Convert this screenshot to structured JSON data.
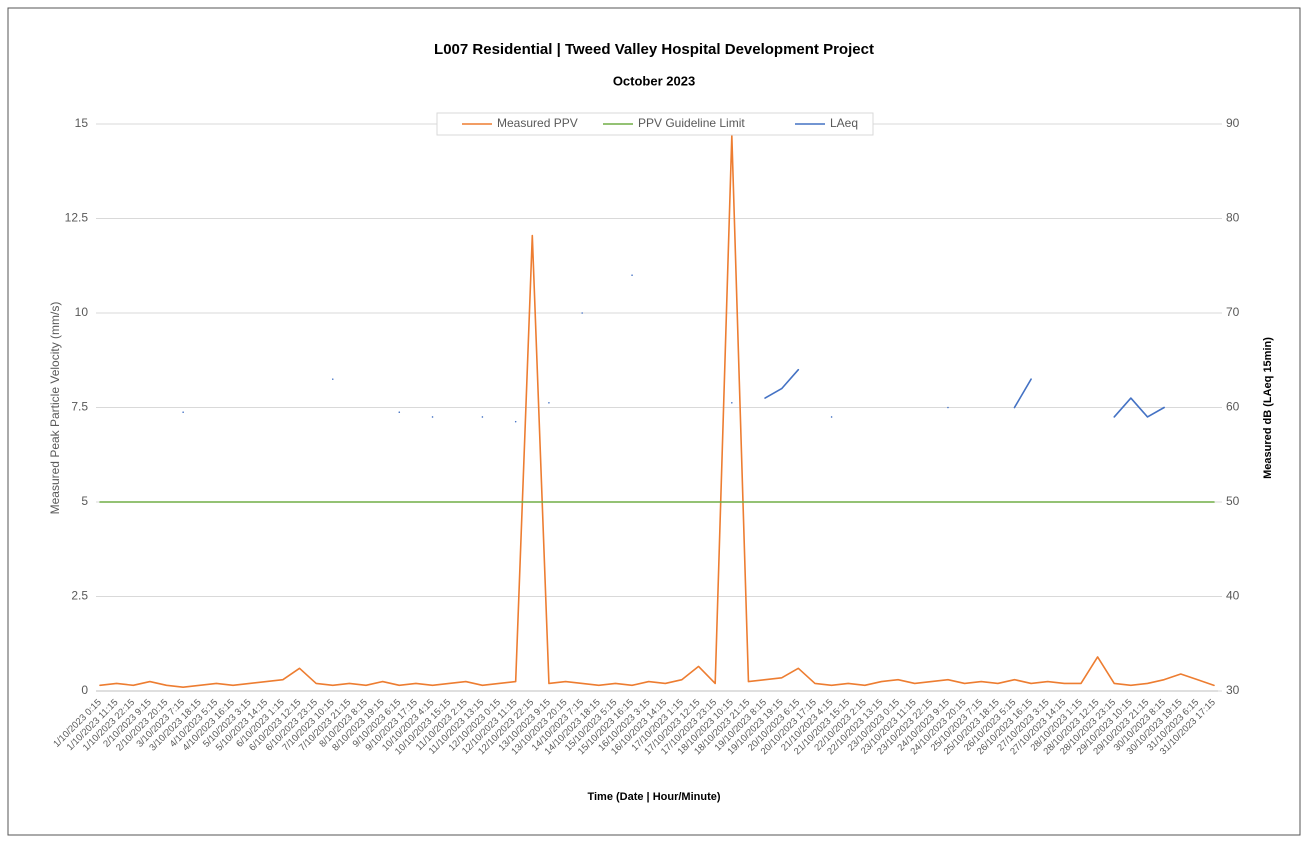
{
  "chart_data": {
    "type": "line",
    "title": "L007 Residential | Tweed Valley Hospital Development Project",
    "subtitle": "October 2023",
    "x_label": "Time  (Date | Hour/Minute)",
    "y_label": "Measured Peak Particle Velocity (mm/s)",
    "y2_label": "Measured dB (LAeq 15min)",
    "categories": [
      "1/10/2023 0:15",
      "1/10/2023 11:15",
      "1/10/2023 22:15",
      "2/10/2023 9:15",
      "2/10/2023 20:15",
      "3/10/2023 7:15",
      "3/10/2023 18:15",
      "4/10/2023 5:15",
      "4/10/2023 16:15",
      "5/10/2023 3:15",
      "5/10/2023 14:15",
      "6/10/2023 1:15",
      "6/10/2023 12:15",
      "6/10/2023 23:15",
      "7/10/2023 10:15",
      "7/10/2023 21:15",
      "8/10/2023 8:15",
      "8/10/2023 19:15",
      "9/10/2023 6:15",
      "9/10/2023 17:15",
      "10/10/2023 4:15",
      "10/10/2023 15:15",
      "11/10/2023 2:15",
      "11/10/2023 13:15",
      "12/10/2023 0:15",
      "12/10/2023 11:15",
      "12/10/2023 22:15",
      "13/10/2023 9:15",
      "13/10/2023 20:15",
      "14/10/2023 7:15",
      "14/10/2023 18:15",
      "15/10/2023 5:15",
      "15/10/2023 16:15",
      "16/10/2023 3:15",
      "16/10/2023 14:15",
      "17/10/2023 1:15",
      "17/10/2023 12:15",
      "17/10/2023 23:15",
      "18/10/2023 10:15",
      "18/10/2023 21:15",
      "19/10/2023 8:15",
      "19/10/2023 19:15",
      "20/10/2023 6:15",
      "20/10/2023 17:15",
      "21/10/2023 4:15",
      "21/10/2023 15:15",
      "22/10/2023 2:15",
      "22/10/2023 13:15",
      "23/10/2023 0:15",
      "23/10/2023 11:15",
      "23/10/2023 22:15",
      "24/10/2023 9:15",
      "24/10/2023 20:15",
      "25/10/2023 7:15",
      "25/10/2023 18:15",
      "26/10/2023 5:15",
      "26/10/2023 16:15",
      "27/10/2023 3:15",
      "27/10/2023 14:15",
      "28/10/2023 1:15",
      "28/10/2023 12:15",
      "28/10/2023 23:15",
      "29/10/2023 10:15",
      "29/10/2023 21:15",
      "30/10/2023 8:15",
      "30/10/2023 19:15",
      "31/10/2023 6:15",
      "31/10/2023 17:15"
    ],
    "series": [
      {
        "name": "Measured PPV",
        "color": "#ed7d31",
        "values": [
          0.15,
          0.2,
          0.15,
          0.25,
          0.15,
          0.1,
          0.15,
          0.2,
          0.15,
          0.2,
          0.25,
          0.3,
          0.6,
          0.2,
          0.15,
          0.2,
          0.15,
          0.25,
          0.15,
          0.2,
          0.15,
          0.2,
          0.25,
          0.15,
          0.2,
          0.25,
          12.05,
          0.2,
          0.25,
          0.2,
          0.15,
          0.2,
          0.15,
          0.25,
          0.2,
          0.3,
          0.65,
          0.2,
          14.7,
          0.25,
          0.3,
          0.35,
          0.6,
          0.2,
          0.15,
          0.2,
          0.15,
          0.25,
          0.3,
          0.2,
          0.25,
          0.3,
          0.2,
          0.25,
          0.2,
          0.3,
          0.2,
          0.25,
          0.2,
          0.2,
          0.9,
          0.2,
          0.15,
          0.2,
          0.3,
          0.45,
          0.3,
          0.15
        ]
      },
      {
        "name": "PPV Guideline Limit",
        "color": "#70ad47",
        "values": [
          5,
          5,
          5,
          5,
          5,
          5,
          5,
          5,
          5,
          5,
          5,
          5,
          5,
          5,
          5,
          5,
          5,
          5,
          5,
          5,
          5,
          5,
          5,
          5,
          5,
          5,
          5,
          5,
          5,
          5,
          5,
          5,
          5,
          5,
          5,
          5,
          5,
          5,
          5,
          5,
          5,
          5,
          5,
          5,
          5,
          5,
          5,
          5,
          5,
          5,
          5,
          5,
          5,
          5,
          5,
          5,
          5,
          5,
          5,
          5,
          5,
          5,
          5,
          5,
          5,
          5,
          5,
          5
        ]
      },
      {
        "name": "LAeq",
        "color": "#4472c4",
        "axis": "y2",
        "values": [
          null,
          null,
          null,
          null,
          null,
          59.5,
          null,
          null,
          null,
          null,
          null,
          null,
          null,
          null,
          63,
          null,
          null,
          null,
          59.5,
          null,
          59,
          null,
          null,
          59,
          null,
          58.5,
          null,
          60.5,
          null,
          70,
          null,
          null,
          74,
          null,
          null,
          null,
          null,
          null,
          60.5,
          null,
          61,
          62,
          64,
          null,
          59,
          null,
          null,
          null,
          null,
          null,
          null,
          60,
          null,
          null,
          null,
          60,
          63,
          null,
          null,
          null,
          null,
          59,
          61,
          59,
          60,
          null,
          null,
          null
        ]
      }
    ],
    "ylim": [
      0,
      15
    ],
    "yticks": [
      0,
      2.5,
      5,
      7.5,
      10,
      12.5,
      15
    ],
    "y2lim": [
      30,
      90
    ],
    "y2ticks": [
      30,
      40,
      50,
      60,
      70,
      80,
      90
    ],
    "grid": true,
    "legend": "top"
  }
}
